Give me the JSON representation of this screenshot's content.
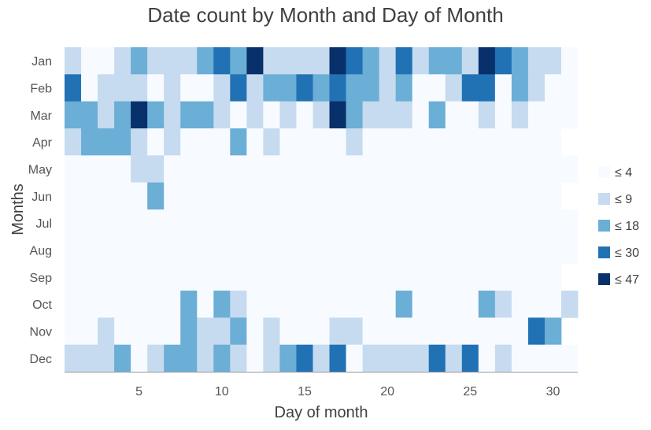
{
  "chart_data": {
    "type": "heatmap",
    "title": "Date count by Month and Day of Month",
    "xlabel": "Day of month",
    "ylabel": "Months",
    "x_range": [
      1,
      31
    ],
    "x_ticks": [
      "5",
      "10",
      "15",
      "20",
      "25",
      "30"
    ],
    "y_categories": [
      "Jan",
      "Feb",
      "Mar",
      "Apr",
      "May",
      "Jun",
      "Jul",
      "Aug",
      "Sep",
      "Oct",
      "Nov",
      "Dec"
    ],
    "legend": {
      "placement": "right",
      "bins": [
        {
          "label": "≤ 4",
          "max": 4,
          "color": "#f7fbff"
        },
        {
          "label": "≤ 9",
          "max": 9,
          "color": "#c6dbef"
        },
        {
          "label": "≤ 18",
          "max": 18,
          "color": "#6baed6"
        },
        {
          "label": "≤ 30",
          "max": 30,
          "color": "#2171b5"
        },
        {
          "label": "≤ 47",
          "max": 47,
          "color": "#08306b"
        }
      ]
    },
    "values": [
      [
        6,
        2,
        2,
        6,
        12,
        6,
        6,
        6,
        12,
        22,
        12,
        42,
        6,
        6,
        6,
        6,
        42,
        22,
        12,
        6,
        22,
        6,
        12,
        12,
        6,
        42,
        22,
        12,
        6,
        6,
        2
      ],
      [
        22,
        2,
        6,
        6,
        6,
        2,
        6,
        2,
        2,
        6,
        22,
        6,
        12,
        12,
        22,
        12,
        22,
        12,
        12,
        6,
        12,
        2,
        2,
        6,
        22,
        22,
        2,
        12,
        6,
        2,
        2
      ],
      [
        12,
        12,
        6,
        12,
        42,
        12,
        6,
        12,
        12,
        6,
        2,
        6,
        2,
        6,
        2,
        6,
        42,
        12,
        6,
        6,
        6,
        2,
        12,
        2,
        2,
        6,
        2,
        6,
        2,
        2,
        2
      ],
      [
        6,
        12,
        12,
        12,
        6,
        2,
        6,
        2,
        2,
        2,
        12,
        2,
        6,
        2,
        2,
        2,
        2,
        6,
        2,
        2,
        2,
        2,
        2,
        2,
        2,
        2,
        2,
        2,
        2,
        2,
        0
      ],
      [
        2,
        2,
        2,
        2,
        6,
        6,
        2,
        2,
        2,
        2,
        2,
        2,
        2,
        2,
        2,
        2,
        2,
        2,
        2,
        2,
        2,
        2,
        2,
        2,
        2,
        2,
        2,
        2,
        2,
        2,
        2
      ],
      [
        2,
        2,
        2,
        2,
        2,
        12,
        2,
        2,
        2,
        2,
        2,
        2,
        2,
        2,
        2,
        2,
        2,
        2,
        2,
        2,
        2,
        2,
        2,
        2,
        2,
        2,
        2,
        2,
        2,
        2,
        0
      ],
      [
        2,
        2,
        2,
        2,
        2,
        2,
        2,
        2,
        2,
        2,
        2,
        2,
        2,
        2,
        2,
        2,
        2,
        2,
        2,
        2,
        2,
        2,
        2,
        2,
        2,
        2,
        2,
        2,
        2,
        2,
        2
      ],
      [
        2,
        2,
        2,
        2,
        2,
        2,
        2,
        2,
        2,
        2,
        2,
        2,
        2,
        2,
        2,
        2,
        2,
        2,
        2,
        2,
        2,
        2,
        2,
        2,
        2,
        2,
        2,
        2,
        2,
        2,
        2
      ],
      [
        2,
        2,
        2,
        2,
        2,
        2,
        2,
        2,
        2,
        2,
        2,
        2,
        2,
        2,
        2,
        2,
        2,
        2,
        2,
        2,
        2,
        2,
        2,
        2,
        2,
        2,
        2,
        2,
        2,
        2,
        0
      ],
      [
        2,
        2,
        2,
        2,
        2,
        2,
        2,
        12,
        2,
        12,
        6,
        2,
        2,
        2,
        2,
        2,
        2,
        2,
        2,
        2,
        12,
        2,
        2,
        2,
        2,
        12,
        6,
        2,
        2,
        2,
        6
      ],
      [
        2,
        2,
        6,
        2,
        2,
        2,
        2,
        12,
        6,
        6,
        12,
        2,
        6,
        2,
        2,
        2,
        6,
        6,
        2,
        2,
        2,
        2,
        2,
        2,
        2,
        2,
        2,
        2,
        22,
        12,
        0
      ],
      [
        6,
        6,
        6,
        12,
        2,
        6,
        12,
        12,
        6,
        12,
        6,
        2,
        6,
        12,
        22,
        6,
        22,
        2,
        6,
        6,
        6,
        6,
        22,
        6,
        22,
        2,
        6,
        2,
        2,
        2,
        2
      ]
    ]
  }
}
